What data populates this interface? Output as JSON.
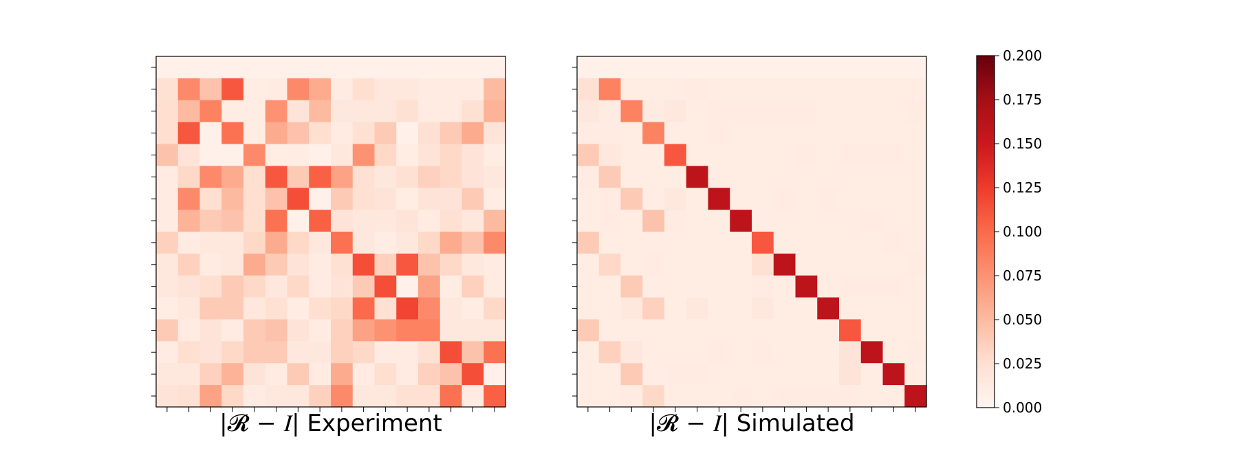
{
  "colormap": {
    "name": "Reds",
    "stops": [
      "#fff5f0",
      "#fee0d2",
      "#fcbba1",
      "#fc9272",
      "#fb6a4a",
      "#ef3b2c",
      "#cb181d",
      "#a50f15",
      "#67000d"
    ]
  },
  "colorbar": {
    "range": [
      0.0,
      0.2
    ],
    "ticks": [
      "0.000",
      "0.025",
      "0.050",
      "0.075",
      "0.100",
      "0.125",
      "0.150",
      "0.175",
      "0.200"
    ]
  },
  "chart_data": [
    {
      "type": "heatmap",
      "title": "|𝓡 − 𝐼| Experiment",
      "vmin": 0.0,
      "vmax": 0.2,
      "matrix": [
        [
          0.006,
          0.006,
          0.006,
          0.006,
          0.006,
          0.006,
          0.006,
          0.006,
          0.006,
          0.006,
          0.006,
          0.006,
          0.006,
          0.006,
          0.006,
          0.006
        ],
        [
          0.024,
          0.08,
          0.045,
          0.11,
          0.01,
          0.012,
          0.08,
          0.06,
          0.012,
          0.026,
          0.016,
          0.016,
          0.012,
          0.012,
          0.012,
          0.05
        ],
        [
          0.026,
          0.05,
          0.085,
          0.01,
          0.01,
          0.075,
          0.02,
          0.05,
          0.016,
          0.016,
          0.016,
          0.024,
          0.012,
          0.012,
          0.024,
          0.055
        ],
        [
          0.026,
          0.11,
          0.006,
          0.095,
          0.01,
          0.06,
          0.045,
          0.026,
          0.012,
          0.024,
          0.04,
          0.006,
          0.024,
          0.04,
          0.06,
          0.02
        ],
        [
          0.045,
          0.02,
          0.006,
          0.006,
          0.08,
          0.01,
          0.01,
          0.006,
          0.016,
          0.075,
          0.03,
          0.01,
          0.02,
          0.03,
          0.02,
          0.01
        ],
        [
          0.012,
          0.03,
          0.08,
          0.06,
          0.026,
          0.11,
          0.04,
          0.105,
          0.065,
          0.024,
          0.016,
          0.024,
          0.035,
          0.03,
          0.02,
          0.016
        ],
        [
          0.012,
          0.08,
          0.026,
          0.05,
          0.026,
          0.045,
          0.115,
          0.006,
          0.04,
          0.024,
          0.02,
          0.01,
          0.02,
          0.02,
          0.04,
          0.01
        ],
        [
          0.012,
          0.055,
          0.04,
          0.045,
          0.026,
          0.095,
          0.006,
          0.105,
          0.02,
          0.016,
          0.016,
          0.02,
          0.012,
          0.024,
          0.016,
          0.05
        ],
        [
          0.035,
          0.012,
          0.016,
          0.016,
          0.03,
          0.06,
          0.03,
          0.016,
          0.095,
          0.016,
          0.01,
          0.016,
          0.03,
          0.06,
          0.045,
          0.08
        ],
        [
          0.016,
          0.035,
          0.012,
          0.016,
          0.06,
          0.04,
          0.02,
          0.012,
          0.024,
          0.115,
          0.035,
          0.11,
          0.045,
          0.03,
          0.016,
          0.012
        ],
        [
          0.016,
          0.02,
          0.026,
          0.04,
          0.03,
          0.016,
          0.03,
          0.012,
          0.02,
          0.04,
          0.115,
          0.006,
          0.065,
          0.01,
          0.035,
          0.012
        ],
        [
          0.01,
          0.016,
          0.04,
          0.04,
          0.016,
          0.024,
          0.01,
          0.026,
          0.03,
          0.1,
          0.024,
          0.12,
          0.08,
          0.016,
          0.01,
          0.03
        ],
        [
          0.04,
          0.012,
          0.02,
          0.012,
          0.04,
          0.045,
          0.02,
          0.012,
          0.035,
          0.065,
          0.075,
          0.085,
          0.085,
          0.016,
          0.016,
          0.016
        ],
        [
          0.012,
          0.026,
          0.02,
          0.03,
          0.04,
          0.04,
          0.016,
          0.016,
          0.035,
          0.03,
          0.012,
          0.012,
          0.024,
          0.115,
          0.045,
          0.095
        ],
        [
          0.016,
          0.016,
          0.035,
          0.055,
          0.02,
          0.012,
          0.04,
          0.012,
          0.06,
          0.012,
          0.026,
          0.012,
          0.035,
          0.045,
          0.115,
          0.006
        ],
        [
          0.02,
          0.024,
          0.065,
          0.03,
          0.012,
          0.016,
          0.016,
          0.035,
          0.08,
          0.016,
          0.016,
          0.024,
          0.024,
          0.095,
          0.012,
          0.105
        ]
      ]
    },
    {
      "type": "heatmap",
      "title": "|𝓡 − 𝐼| Simulated",
      "vmin": 0.0,
      "vmax": 0.2,
      "matrix": [
        [
          0.006,
          0.006,
          0.006,
          0.006,
          0.006,
          0.006,
          0.006,
          0.006,
          0.006,
          0.006,
          0.006,
          0.006,
          0.006,
          0.006,
          0.006,
          0.006
        ],
        [
          0.024,
          0.085,
          0.01,
          0.01,
          0.01,
          0.012,
          0.01,
          0.01,
          0.01,
          0.01,
          0.01,
          0.01,
          0.01,
          0.01,
          0.01,
          0.01
        ],
        [
          0.016,
          0.012,
          0.085,
          0.012,
          0.016,
          0.01,
          0.012,
          0.012,
          0.012,
          0.012,
          0.012,
          0.01,
          0.01,
          0.01,
          0.01,
          0.012
        ],
        [
          0.012,
          0.012,
          0.01,
          0.085,
          0.01,
          0.01,
          0.012,
          0.01,
          0.01,
          0.01,
          0.01,
          0.01,
          0.01,
          0.01,
          0.01,
          0.01
        ],
        [
          0.04,
          0.016,
          0.01,
          0.01,
          0.11,
          0.01,
          0.01,
          0.01,
          0.01,
          0.01,
          0.012,
          0.01,
          0.012,
          0.012,
          0.012,
          0.01
        ],
        [
          0.012,
          0.04,
          0.01,
          0.01,
          0.01,
          0.16,
          0.01,
          0.01,
          0.01,
          0.01,
          0.01,
          0.01,
          0.01,
          0.01,
          0.01,
          0.01
        ],
        [
          0.01,
          0.012,
          0.04,
          0.01,
          0.016,
          0.01,
          0.16,
          0.01,
          0.01,
          0.012,
          0.01,
          0.012,
          0.01,
          0.01,
          0.01,
          0.01
        ],
        [
          0.01,
          0.012,
          0.01,
          0.045,
          0.012,
          0.01,
          0.01,
          0.16,
          0.01,
          0.01,
          0.01,
          0.01,
          0.01,
          0.012,
          0.01,
          0.01
        ],
        [
          0.04,
          0.01,
          0.01,
          0.01,
          0.01,
          0.01,
          0.01,
          0.01,
          0.11,
          0.01,
          0.01,
          0.01,
          0.01,
          0.01,
          0.012,
          0.01
        ],
        [
          0.01,
          0.03,
          0.01,
          0.012,
          0.01,
          0.01,
          0.01,
          0.01,
          0.024,
          0.16,
          0.01,
          0.01,
          0.01,
          0.01,
          0.01,
          0.012
        ],
        [
          0.01,
          0.01,
          0.04,
          0.01,
          0.01,
          0.01,
          0.01,
          0.01,
          0.012,
          0.01,
          0.16,
          0.01,
          0.012,
          0.012,
          0.012,
          0.01
        ],
        [
          0.01,
          0.01,
          0.016,
          0.035,
          0.01,
          0.016,
          0.01,
          0.01,
          0.016,
          0.01,
          0.01,
          0.16,
          0.01,
          0.01,
          0.01,
          0.01
        ],
        [
          0.04,
          0.01,
          0.01,
          0.01,
          0.01,
          0.01,
          0.01,
          0.01,
          0.01,
          0.01,
          0.01,
          0.01,
          0.11,
          0.01,
          0.01,
          0.01
        ],
        [
          0.01,
          0.035,
          0.016,
          0.01,
          0.01,
          0.01,
          0.012,
          0.01,
          0.012,
          0.01,
          0.01,
          0.01,
          0.02,
          0.16,
          0.01,
          0.012
        ],
        [
          0.01,
          0.01,
          0.04,
          0.01,
          0.012,
          0.012,
          0.01,
          0.01,
          0.01,
          0.01,
          0.01,
          0.01,
          0.02,
          0.01,
          0.16,
          0.01
        ],
        [
          0.01,
          0.01,
          0.012,
          0.03,
          0.01,
          0.01,
          0.01,
          0.012,
          0.01,
          0.012,
          0.012,
          0.012,
          0.012,
          0.01,
          0.01,
          0.16
        ]
      ]
    }
  ]
}
